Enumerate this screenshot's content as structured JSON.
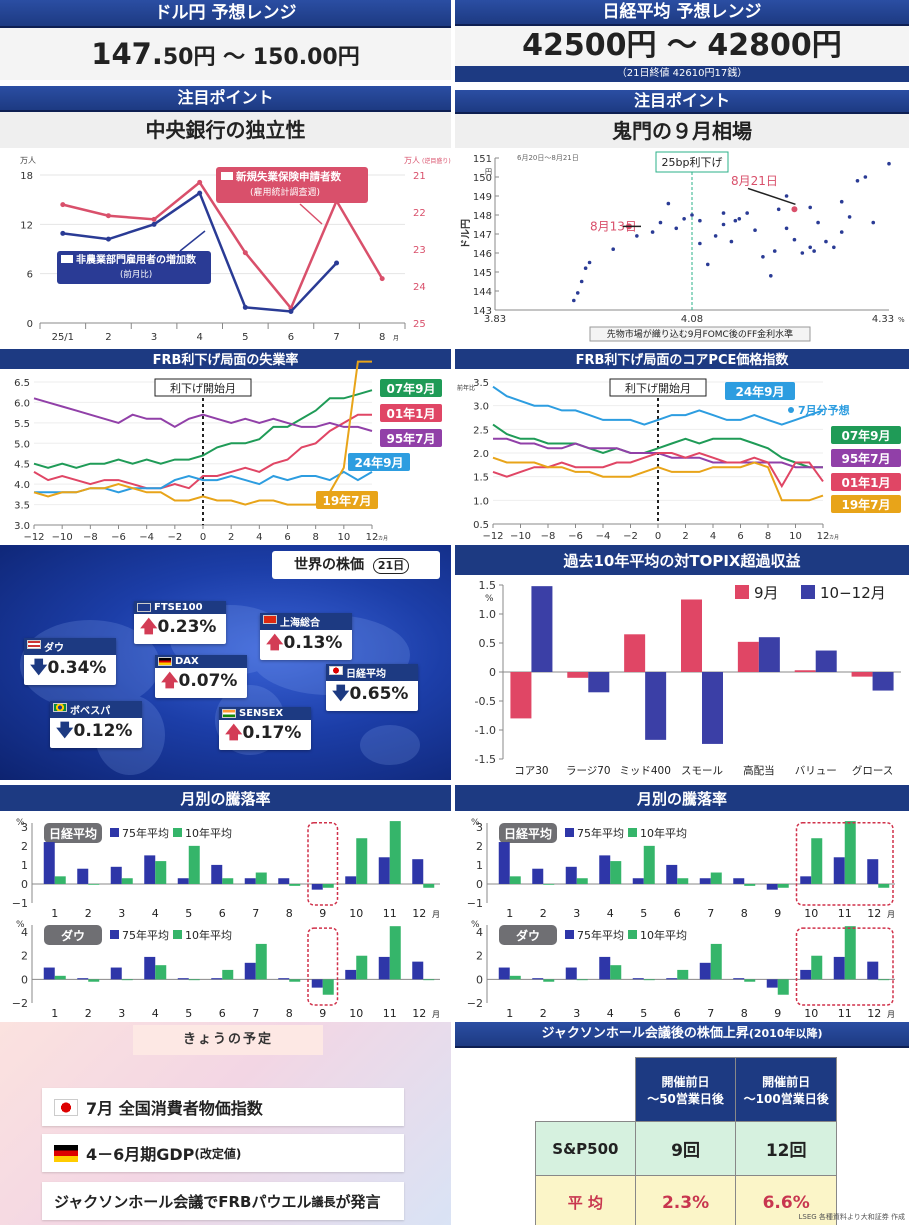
{
  "usdjpy": {
    "header": "ドル円 予想レンジ",
    "range_a": "147.",
    "range_b": "50円 ～ 150.",
    "range_c": "00円"
  },
  "nikkei": {
    "header": "日経平均 予想レンジ",
    "range": "42500円 ～ 42800円",
    "close_note": "（21日終値 42610円17銭）"
  },
  "focus_left": {
    "header": "注目ポイント",
    "title": "中央銀行の独立性"
  },
  "focus_right": {
    "header": "注目ポイント",
    "title": "鬼門の９月相場"
  },
  "world": {
    "title": "世界の株価",
    "date": "21日",
    "items": [
      {
        "name": "FTSE100",
        "value": "0.23%",
        "dir": "up"
      },
      {
        "name": "上海総合",
        "value": "0.13%",
        "dir": "up"
      },
      {
        "name": "ダウ",
        "value": "0.34%",
        "dir": "down"
      },
      {
        "name": "DAX",
        "value": "0.07%",
        "dir": "up"
      },
      {
        "name": "日経平均",
        "value": "0.65%",
        "dir": "down"
      },
      {
        "name": "ボベスパ",
        "value": "0.12%",
        "dir": "down"
      },
      {
        "name": "SENSEX",
        "value": "0.17%",
        "dir": "up"
      }
    ]
  },
  "schedule": {
    "header": "きょうの予定",
    "items": [
      {
        "text": "7月 全国消費者物価指数",
        "flag": "jp"
      },
      {
        "text": "4－6月期GDP",
        "note": "(改定値)",
        "flag": "de"
      },
      {
        "text": "ジャクソンホール会議でFRBパウエル",
        "note": "議長",
        "tail": "が発言",
        "flag": ""
      }
    ]
  },
  "jackson": {
    "header": "ジャクソンホール会議後の株価上昇",
    "header_note": "(2010年以降)",
    "col1": "開催前日\n～50営業日後",
    "col2": "開催前日\n～100営業日後",
    "row1": "S&P500",
    "row1_v1": "9回",
    "row1_v2": "12回",
    "row2": "平 均",
    "row2_v1": "2.3%",
    "row2_v2": "6.6%",
    "source": "LSEG 各種資料より大和証券 作成"
  },
  "chart_data": [
    {
      "id": "us-jobs",
      "type": "line",
      "xcategories": [
        "25/1",
        "2",
        "3",
        "4",
        "5",
        "6",
        "7",
        "8"
      ],
      "xunit": "月",
      "yleft_label": "万人",
      "yleft_ticks": [
        "0",
        "6",
        "12",
        "18"
      ],
      "yright_label": "万人",
      "yright_note": "(逆目盛り)",
      "yright_ticks": [
        "21",
        "22",
        "23",
        "24",
        "25"
      ],
      "series": [
        {
          "name": "新規失業保険申請者数",
          "note": "(雇用統計調査週)",
          "color": "#d9506b",
          "axis": "right",
          "values": [
            21.8,
            22.1,
            22.2,
            21.2,
            23.1,
            24.6,
            21.7,
            23.8
          ]
        },
        {
          "name": "非農業部門雇用者の増加数",
          "note": "(前月比)",
          "color": "#2a3b95",
          "axis": "left",
          "values": [
            10.9,
            10.2,
            12.0,
            15.8,
            1.9,
            1.4,
            7.3,
            null
          ]
        }
      ]
    },
    {
      "id": "usdjpy-ff",
      "type": "scatter",
      "xlabel": "先物市場が織り込む9月FOMC後のFF金利水準",
      "xticks": [
        "3.83",
        "4.08",
        "4.33"
      ],
      "xunit": "%",
      "ylabel": "ドル円",
      "yunit": "円",
      "yticks": [
        "143",
        "144",
        "145",
        "146",
        "147",
        "148",
        "149",
        "150",
        "151"
      ],
      "date_note": "6月20日～8月21日",
      "vline_label": "25bp利下げ",
      "ann1": "8月13日",
      "ann2": "8月21日",
      "points": [
        [
          3.93,
          143.5
        ],
        [
          3.935,
          143.9
        ],
        [
          3.94,
          144.5
        ],
        [
          3.945,
          145.2
        ],
        [
          3.95,
          145.5
        ],
        [
          3.98,
          146.2
        ],
        [
          4.01,
          146.9
        ],
        [
          4.03,
          147.1
        ],
        [
          4.04,
          147.6
        ],
        [
          4.05,
          148.6
        ],
        [
          4.06,
          147.3
        ],
        [
          4.07,
          147.8
        ],
        [
          4.08,
          148.0
        ],
        [
          4.09,
          146.5
        ],
        [
          4.09,
          147.7
        ],
        [
          4.1,
          145.4
        ],
        [
          4.11,
          146.9
        ],
        [
          4.12,
          147.5
        ],
        [
          4.12,
          148.1
        ],
        [
          4.13,
          146.6
        ],
        [
          4.135,
          147.7
        ],
        [
          4.14,
          147.8
        ],
        [
          4.15,
          148.1
        ],
        [
          4.16,
          147.2
        ],
        [
          4.17,
          145.8
        ],
        [
          4.18,
          144.8
        ],
        [
          4.185,
          146.1
        ],
        [
          4.19,
          148.3
        ],
        [
          4.2,
          147.3
        ],
        [
          4.2,
          149.0
        ],
        [
          4.21,
          146.7
        ],
        [
          4.22,
          146.0
        ],
        [
          4.23,
          148.4
        ],
        [
          4.23,
          146.3
        ],
        [
          4.235,
          146.1
        ],
        [
          4.24,
          147.6
        ],
        [
          4.25,
          146.6
        ],
        [
          4.26,
          146.3
        ],
        [
          4.27,
          147.1
        ],
        [
          4.27,
          148.7
        ],
        [
          4.28,
          147.9
        ],
        [
          4.29,
          149.8
        ],
        [
          4.3,
          150.0
        ],
        [
          4.31,
          147.6
        ],
        [
          4.33,
          150.7
        ]
      ],
      "hl1": [
        4.0,
        147.4
      ],
      "hl2": [
        4.21,
        148.3
      ]
    },
    {
      "id": "frb-unemp",
      "type": "line",
      "title": "FRB利下げ局面の失業率",
      "marker": "利下げ開始月",
      "xticks": [
        "−12",
        "−10",
        "−8",
        "−6",
        "−4",
        "−2",
        "0",
        "2",
        "4",
        "6",
        "8",
        "10",
        "12"
      ],
      "xunit": "カ月",
      "yticks": [
        "3.0",
        "3.5",
        "4.0",
        "4.5",
        "5.0",
        "5.5",
        "6.0",
        "6.5"
      ],
      "series": [
        {
          "name": "07年9月",
          "color": "#1f9b57",
          "values": [
            4.5,
            4.4,
            4.5,
            4.4,
            4.5,
            4.5,
            4.6,
            4.5,
            4.6,
            4.5,
            4.6,
            4.6,
            4.7,
            4.9,
            5.0,
            5.0,
            5.1,
            5.4,
            5.4,
            5.6,
            5.8,
            6.1,
            6.1,
            6.2,
            6.3
          ]
        },
        {
          "name": "01年1月",
          "color": "#e04665",
          "values": [
            4.3,
            4.1,
            4.2,
            4.1,
            4.0,
            4.1,
            4.1,
            4.0,
            3.9,
            3.9,
            4.0,
            3.9,
            4.2,
            4.2,
            4.3,
            4.4,
            4.3,
            4.5,
            4.6,
            4.9,
            5.0,
            5.3,
            5.5,
            5.7,
            5.7
          ]
        },
        {
          "name": "95年7月",
          "color": "#9140a8",
          "values": [
            6.1,
            6.0,
            5.9,
            5.8,
            5.7,
            5.6,
            5.5,
            5.7,
            5.6,
            5.6,
            5.4,
            5.6,
            5.7,
            5.6,
            5.5,
            5.6,
            5.5,
            5.6,
            5.5,
            5.4,
            5.4,
            5.5,
            5.4,
            5.4,
            5.3
          ]
        },
        {
          "name": "24年9月",
          "color": "#2d9de0",
          "values": [
            3.8,
            3.8,
            3.8,
            3.8,
            3.9,
            3.9,
            3.8,
            3.9,
            3.9,
            3.9,
            4.1,
            4.2,
            4.1,
            4.1,
            4.2,
            4.1,
            4.0,
            4.2,
            4.1,
            4.2,
            4.2,
            4.1,
            4.3,
            4.1,
            4.3
          ]
        },
        {
          "name": "19年7月",
          "color": "#e8a419",
          "values": [
            3.8,
            3.7,
            3.8,
            3.8,
            3.9,
            3.9,
            4.0,
            3.9,
            3.8,
            3.8,
            3.6,
            3.6,
            3.7,
            3.6,
            3.6,
            3.5,
            3.6,
            3.6,
            3.5,
            3.5,
            3.5,
            3.8,
            4.4,
            14.7,
            13.3
          ]
        }
      ]
    },
    {
      "id": "frb-pce",
      "type": "line",
      "title": "FRB利下げ局面のコアPCE価格指数",
      "marker": "利下げ開始月",
      "yunit": "前年比",
      "xticks": [
        "−12",
        "−10",
        "−8",
        "−6",
        "−4",
        "−2",
        "0",
        "2",
        "4",
        "6",
        "8",
        "10",
        "12"
      ],
      "xunit": "カ月",
      "yticks": [
        "0.5",
        "1.0",
        "1.5",
        "2.0",
        "2.5",
        "3.0",
        "3.5"
      ],
      "note": "7月分予想",
      "series": [
        {
          "name": "24年9月",
          "color": "#2d9de0",
          "values": [
            3.4,
            3.2,
            3.1,
            3.0,
            3.0,
            2.9,
            2.9,
            2.8,
            2.7,
            2.7,
            2.7,
            2.6,
            2.7,
            2.8,
            2.8,
            2.9,
            2.8,
            2.7,
            2.7,
            2.8,
            2.7,
            2.6,
            2.7,
            2.8,
            2.9
          ]
        },
        {
          "name": "07年9月",
          "color": "#1f9b57",
          "values": [
            2.6,
            2.4,
            2.3,
            2.3,
            2.2,
            2.2,
            2.2,
            2.1,
            2.0,
            2.1,
            2.0,
            2.0,
            2.1,
            2.2,
            2.3,
            2.2,
            2.3,
            2.3,
            2.3,
            2.2,
            2.1,
            1.9,
            1.8,
            1.7,
            1.7
          ]
        },
        {
          "name": "95年7月",
          "color": "#9140a8",
          "values": [
            2.3,
            2.3,
            2.2,
            2.2,
            2.1,
            2.1,
            2.2,
            2.1,
            2.1,
            2.1,
            2.0,
            2.0,
            2.0,
            1.9,
            1.9,
            1.9,
            1.8,
            1.8,
            1.8,
            1.8,
            1.8,
            1.8,
            1.7,
            1.7,
            1.7
          ]
        },
        {
          "name": "01年1月",
          "color": "#e04665",
          "values": [
            1.6,
            1.5,
            1.6,
            1.7,
            1.7,
            1.8,
            1.7,
            1.7,
            1.7,
            1.8,
            1.8,
            1.9,
            2.0,
            2.0,
            1.9,
            2.0,
            1.9,
            1.8,
            1.8,
            1.9,
            1.8,
            1.3,
            1.8,
            1.8,
            1.4
          ]
        },
        {
          "name": "19年7月",
          "color": "#e8a419",
          "values": [
            1.9,
            1.8,
            1.8,
            1.8,
            1.7,
            1.7,
            1.6,
            1.6,
            1.5,
            1.5,
            1.5,
            1.6,
            1.7,
            1.6,
            1.6,
            1.6,
            1.7,
            1.7,
            1.7,
            1.8,
            1.7,
            1.0,
            1.0,
            1.0,
            1.1
          ]
        }
      ]
    },
    {
      "id": "topix-excess",
      "type": "bar",
      "title": "過去10年平均の対TOPIX超過収益",
      "yunit": "%",
      "categories": [
        "コア30",
        "ラージ70",
        "ミッド400",
        "スモール",
        "高配当",
        "バリュー",
        "グロース"
      ],
      "yticks": [
        "-1.5",
        "-1.0",
        "-0.5",
        "0",
        "0.5",
        "1.0",
        "1.5"
      ],
      "series": [
        {
          "name": "9月",
          "color": "#e04665",
          "values": [
            -0.8,
            -0.1,
            0.65,
            1.25,
            0.52,
            0.03,
            -0.08
          ]
        },
        {
          "name": "10−12月",
          "color": "#3b3fa6",
          "values": [
            1.48,
            -0.35,
            -1.17,
            -1.24,
            0.6,
            0.37,
            -0.32
          ]
        }
      ]
    },
    {
      "id": "monthly-left",
      "type": "bar",
      "title": "月別の騰落率",
      "categories": [
        "1",
        "2",
        "3",
        "4",
        "5",
        "6",
        "7",
        "8",
        "9",
        "10",
        "11",
        "12"
      ],
      "xunit": "月",
      "yunit": "%",
      "panels": [
        {
          "label": "日経平均",
          "yticks": [
            "−1",
            "0",
            "1",
            "2",
            "3"
          ],
          "series": [
            {
              "name": "75年平均",
              "color": "#2e36a8",
              "values": [
                2.2,
                0.8,
                0.9,
                1.5,
                0.3,
                1.0,
                0.3,
                0.3,
                -0.3,
                0.4,
                1.4,
                1.3
              ]
            },
            {
              "name": "10年平均",
              "color": "#35b56a",
              "values": [
                0.4,
                0.0,
                0.3,
                1.2,
                2.0,
                0.3,
                0.6,
                -0.1,
                -0.2,
                2.4,
                3.3,
                -0.2
              ]
            }
          ]
        },
        {
          "label": "ダウ",
          "yticks": [
            "−2",
            "0",
            "2",
            "4"
          ],
          "series": [
            {
              "name": "75年平均",
              "color": "#2e36a8",
              "values": [
                1.0,
                0.1,
                1.0,
                1.9,
                0.1,
                0.1,
                1.4,
                0.1,
                -0.7,
                0.8,
                1.9,
                1.5
              ]
            },
            {
              "name": "10年平均",
              "color": "#35b56a",
              "values": [
                0.3,
                -0.2,
                0.0,
                1.2,
                0.0,
                0.8,
                3.0,
                -0.2,
                -1.3,
                2.0,
                4.5,
                0.0
              ]
            }
          ]
        }
      ]
    },
    {
      "id": "monthly-right",
      "type": "bar",
      "title": "月別の騰落率",
      "categories": [
        "1",
        "2",
        "3",
        "4",
        "5",
        "6",
        "7",
        "8",
        "9",
        "10",
        "11",
        "12"
      ],
      "xunit": "月",
      "yunit": "%",
      "panels": [
        {
          "label": "日経平均",
          "yticks": [
            "−1",
            "0",
            "1",
            "2",
            "3"
          ],
          "series": [
            {
              "name": "75年平均",
              "color": "#2e36a8",
              "values": [
                2.2,
                0.8,
                0.9,
                1.5,
                0.3,
                1.0,
                0.3,
                0.3,
                -0.3,
                0.4,
                1.4,
                1.3
              ]
            },
            {
              "name": "10年平均",
              "color": "#35b56a",
              "values": [
                0.4,
                0.0,
                0.3,
                1.2,
                2.0,
                0.3,
                0.6,
                -0.1,
                -0.2,
                2.4,
                3.3,
                -0.2
              ]
            }
          ]
        },
        {
          "label": "ダウ",
          "yticks": [
            "−2",
            "0",
            "2",
            "4"
          ],
          "series": [
            {
              "name": "75年平均",
              "color": "#2e36a8",
              "values": [
                1.0,
                0.1,
                1.0,
                1.9,
                0.1,
                0.1,
                1.4,
                0.1,
                -0.7,
                0.8,
                1.9,
                1.5
              ]
            },
            {
              "name": "10年平均",
              "color": "#35b56a",
              "values": [
                0.3,
                -0.2,
                0.0,
                1.2,
                0.0,
                0.8,
                3.0,
                -0.2,
                -1.3,
                2.0,
                4.5,
                0.0
              ]
            }
          ]
        }
      ]
    }
  ]
}
